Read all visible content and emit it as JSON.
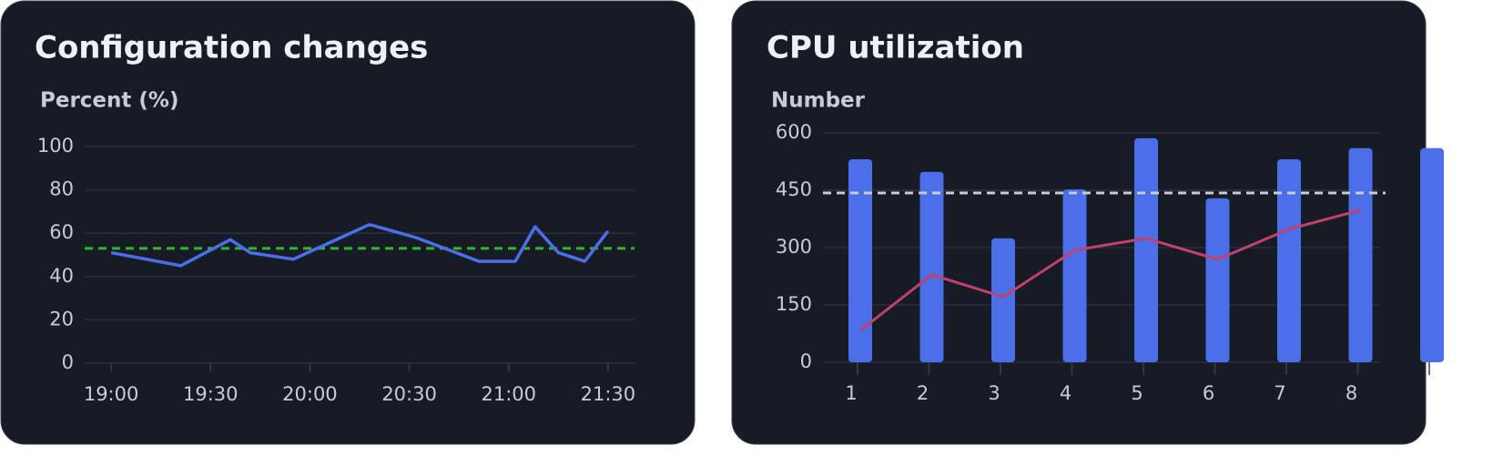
{
  "chart_data": [
    {
      "type": "line",
      "title": "Configuration changes",
      "y_label": "Percent (%)",
      "x": [
        "19:00",
        "19:21",
        "19:36",
        "19:42",
        "19:55",
        "20:18",
        "20:32",
        "20:51",
        "21:02",
        "21:08",
        "21:15",
        "21:23",
        "21:30"
      ],
      "values": [
        51,
        45,
        57,
        51,
        48,
        64,
        58,
        47,
        47,
        63,
        51,
        47,
        61
      ],
      "color": "#4a6fe8",
      "xlim": [
        "18:52",
        "21:38"
      ],
      "xticks": [
        "19:00",
        "19:30",
        "20:00",
        "20:30",
        "21:00",
        "21:30"
      ],
      "ylim": [
        0,
        100
      ],
      "yticks": [
        0,
        20,
        40,
        60,
        80,
        100
      ],
      "grid": true,
      "threshold": {
        "value": 53,
        "color": "#2eb82e"
      }
    },
    {
      "type": "bar",
      "title": "CPU utilization",
      "y_label": "Number",
      "categories": [
        "1",
        "2",
        "3",
        "4",
        "5",
        "6",
        "7",
        "8",
        null
      ],
      "series": [
        {
          "type": "bar",
          "color": "#4a6fe8",
          "values": [
            531,
            498,
            324,
            452,
            586,
            429,
            531,
            560,
            560
          ]
        },
        {
          "type": "line",
          "color": "#c2416b",
          "values": [
            83,
            229,
            171,
            293,
            324,
            269,
            348,
            398,
            null
          ]
        }
      ],
      "ylim": [
        0,
        600
      ],
      "yticks": [
        0,
        150,
        300,
        450,
        600
      ],
      "grid": true,
      "threshold": {
        "value": 443,
        "color": "#c8ccd4"
      }
    }
  ]
}
